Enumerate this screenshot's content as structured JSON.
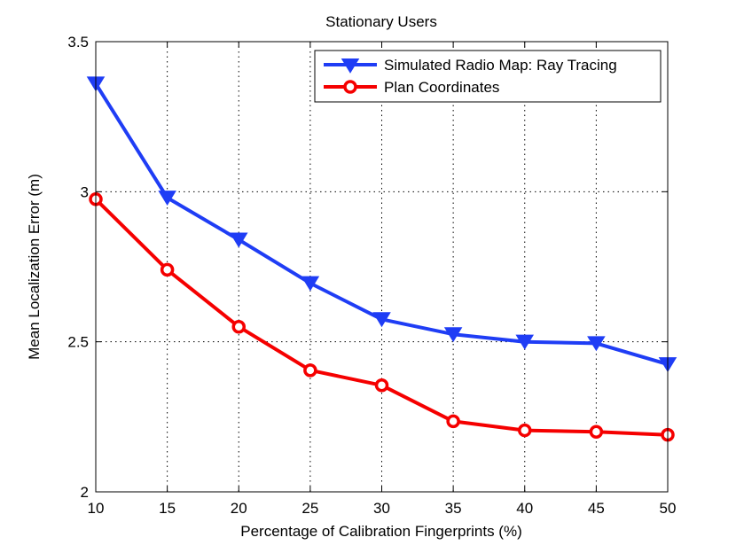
{
  "chart_data": {
    "type": "line",
    "title": "Stationary Users",
    "xlabel": "Percentage of Calibration Fingerprints (%)",
    "ylabel": "Mean Localization Error (m)",
    "xlim": [
      10,
      50
    ],
    "ylim": [
      2,
      3.5
    ],
    "xticks": [
      10,
      15,
      20,
      25,
      30,
      35,
      40,
      45,
      50
    ],
    "yticks": [
      2,
      2.5,
      3,
      3.5
    ],
    "xtick_labels": [
      "10",
      "15",
      "20",
      "25",
      "30",
      "35",
      "40",
      "45",
      "50"
    ],
    "ytick_labels": [
      "2",
      "2.5",
      "3",
      "3.5"
    ],
    "grid": true,
    "legend_position": "top-right",
    "x": [
      10,
      15,
      20,
      25,
      30,
      35,
      40,
      45,
      50
    ],
    "series": [
      {
        "name": "Simulated Radio Map: Ray Tracing",
        "color": "#1f3df5",
        "marker": "triangle-down",
        "values": [
          3.36,
          2.98,
          2.84,
          2.695,
          2.575,
          2.525,
          2.5,
          2.495,
          2.425
        ]
      },
      {
        "name": "Plan Coordinates",
        "color": "#f50000",
        "marker": "circle",
        "values": [
          2.975,
          2.74,
          2.55,
          2.405,
          2.355,
          2.235,
          2.205,
          2.2,
          2.19
        ]
      }
    ]
  }
}
